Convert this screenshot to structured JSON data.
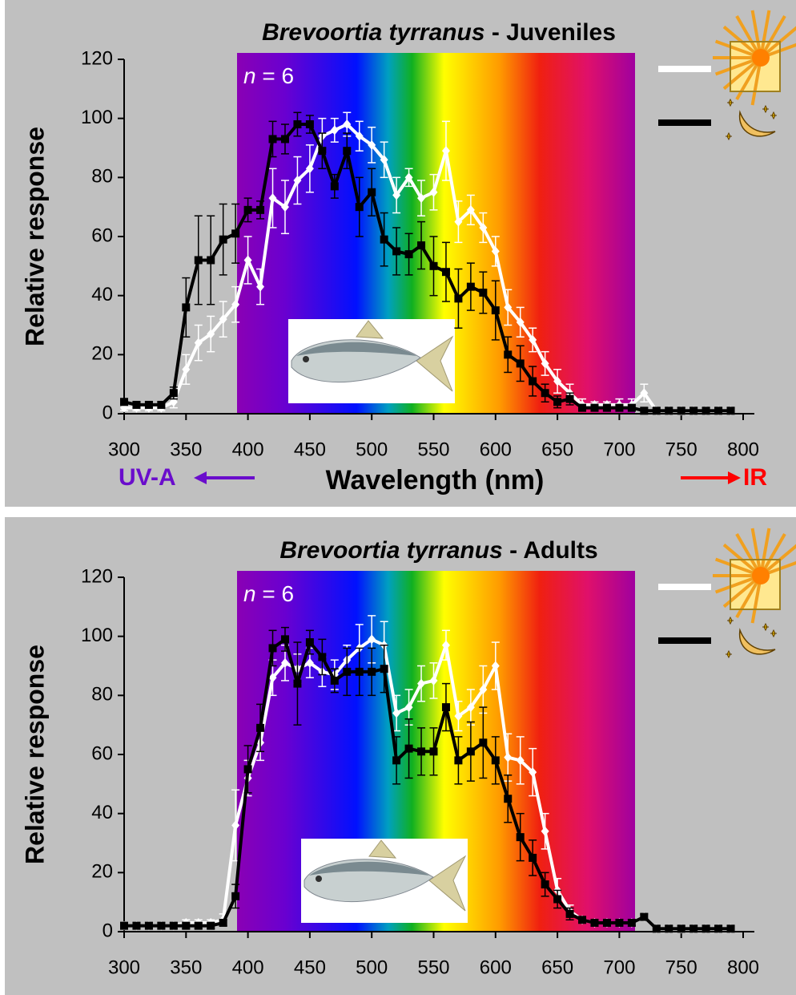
{
  "chart_data": [
    {
      "type": "line",
      "title_italic": "Brevoortia tyrranus",
      "title_rest": " - Juveniles",
      "annotation_italic": "n",
      "annotation_rest": " = 6",
      "ylabel": "Relative response",
      "xlabel": "Wavelength (nm)",
      "left_label": "UV-A",
      "left_color": "#6a0dcc",
      "right_label": "IR",
      "right_color": "#ff0000",
      "xlim": [
        300,
        800
      ],
      "ylim": [
        0,
        120
      ],
      "xticks": [
        300,
        350,
        400,
        450,
        500,
        550,
        600,
        650,
        700,
        750,
        800
      ],
      "yticks": [
        0,
        20,
        40,
        60,
        80,
        100,
        120
      ],
      "x": [
        300,
        310,
        320,
        330,
        340,
        350,
        360,
        370,
        380,
        390,
        400,
        410,
        420,
        430,
        440,
        450,
        460,
        470,
        480,
        490,
        500,
        510,
        520,
        530,
        540,
        550,
        560,
        570,
        580,
        590,
        600,
        610,
        620,
        630,
        640,
        650,
        660,
        670,
        680,
        690,
        700,
        710,
        720,
        730,
        740,
        750,
        760,
        770,
        780,
        790
      ],
      "series": [
        {
          "color": "#ffffff",
          "marker": "diamond",
          "values": [
            2,
            2,
            2,
            2,
            4,
            15,
            24,
            27,
            32,
            37,
            52,
            43,
            73,
            70,
            79,
            83,
            94,
            96,
            98,
            94,
            91,
            86,
            74,
            80,
            73,
            75,
            89,
            65,
            69,
            63,
            55,
            36,
            31,
            25,
            17,
            11,
            7,
            3,
            3,
            3,
            3,
            3,
            7,
            1,
            1,
            1,
            1,
            1,
            1,
            1
          ],
          "errors": [
            1,
            1,
            1,
            1,
            2,
            5,
            6,
            6,
            6,
            6,
            8,
            6,
            10,
            9,
            8,
            8,
            6,
            4,
            4,
            5,
            6,
            6,
            6,
            3,
            6,
            6,
            10,
            7,
            5,
            5,
            5,
            6,
            5,
            4,
            4,
            4,
            3,
            2,
            1,
            1,
            2,
            2,
            3,
            1,
            1,
            1,
            1,
            1,
            1,
            1
          ]
        },
        {
          "color": "#000000",
          "marker": "square",
          "values": [
            4,
            3,
            3,
            3,
            7,
            36,
            52,
            52,
            59,
            61,
            69,
            69,
            93,
            93,
            98,
            98,
            89,
            77,
            89,
            70,
            75,
            59,
            55,
            54,
            57,
            50,
            48,
            39,
            43,
            41,
            35,
            20,
            17,
            11,
            7,
            4,
            5,
            2,
            2,
            2,
            2,
            2,
            1,
            1,
            1,
            1,
            1,
            1,
            1,
            1
          ],
          "errors": [
            1,
            1,
            1,
            1,
            2,
            10,
            15,
            15,
            12,
            10,
            4,
            3,
            6,
            5,
            4,
            3,
            6,
            4,
            6,
            10,
            8,
            9,
            8,
            7,
            8,
            10,
            10,
            10,
            8,
            7,
            10,
            6,
            6,
            5,
            3,
            2,
            2,
            1,
            1,
            1,
            1,
            1,
            1,
            1,
            1,
            1,
            1,
            1,
            1,
            1
          ]
        }
      ]
    },
    {
      "type": "line",
      "title_italic": "Brevoortia tyrranus",
      "title_rest": " - Adults",
      "annotation_italic": "n",
      "annotation_rest": " = 6",
      "ylabel": "Relative response",
      "xlim": [
        300,
        800
      ],
      "ylim": [
        0,
        120
      ],
      "xticks": [
        300,
        350,
        400,
        450,
        500,
        550,
        600,
        650,
        700,
        750,
        800
      ],
      "yticks": [
        0,
        20,
        40,
        60,
        80,
        100,
        120
      ],
      "x": [
        300,
        310,
        320,
        330,
        340,
        350,
        360,
        370,
        380,
        390,
        400,
        410,
        420,
        430,
        440,
        450,
        460,
        470,
        480,
        490,
        500,
        510,
        520,
        530,
        540,
        550,
        560,
        570,
        580,
        590,
        600,
        610,
        620,
        630,
        640,
        650,
        660,
        670,
        680,
        690,
        700,
        710,
        720,
        730,
        740,
        750,
        760,
        770,
        780,
        790
      ],
      "series": [
        {
          "color": "#ffffff",
          "marker": "diamond",
          "values": [
            2,
            2,
            2,
            2,
            2,
            3,
            3,
            3,
            4,
            36,
            52,
            64,
            86,
            91,
            89,
            91,
            88,
            87,
            92,
            96,
            99,
            97,
            74,
            76,
            84,
            85,
            97,
            73,
            76,
            82,
            90,
            59,
            58,
            54,
            34,
            14,
            7,
            4,
            3,
            3,
            3,
            3,
            5,
            1,
            1,
            1,
            1,
            1,
            1,
            1
          ],
          "errors": [
            1,
            1,
            1,
            1,
            1,
            1,
            1,
            1,
            2,
            12,
            6,
            6,
            6,
            6,
            5,
            5,
            5,
            5,
            5,
            8,
            8,
            8,
            6,
            6,
            6,
            6,
            5,
            5,
            6,
            8,
            8,
            8,
            8,
            8,
            6,
            4,
            2,
            1,
            1,
            1,
            1,
            1,
            1,
            1,
            1,
            1,
            1,
            1,
            1,
            1
          ]
        },
        {
          "color": "#000000",
          "marker": "square",
          "values": [
            2,
            2,
            2,
            2,
            2,
            2,
            2,
            2,
            3,
            12,
            55,
            69,
            96,
            99,
            84,
            98,
            93,
            85,
            88,
            88,
            88,
            89,
            58,
            62,
            61,
            61,
            76,
            58,
            61,
            64,
            58,
            45,
            32,
            25,
            16,
            11,
            6,
            4,
            3,
            3,
            3,
            3,
            5,
            1,
            1,
            1,
            1,
            1,
            1,
            1
          ],
          "errors": [
            1,
            1,
            1,
            1,
            1,
            1,
            1,
            1,
            1,
            4,
            8,
            8,
            6,
            4,
            14,
            4,
            6,
            4,
            8,
            8,
            8,
            8,
            8,
            10,
            8,
            8,
            8,
            8,
            10,
            12,
            8,
            8,
            8,
            6,
            4,
            3,
            2,
            1,
            1,
            1,
            1,
            1,
            1,
            1,
            1,
            1,
            1,
            1,
            1,
            1
          ]
        }
      ]
    }
  ]
}
